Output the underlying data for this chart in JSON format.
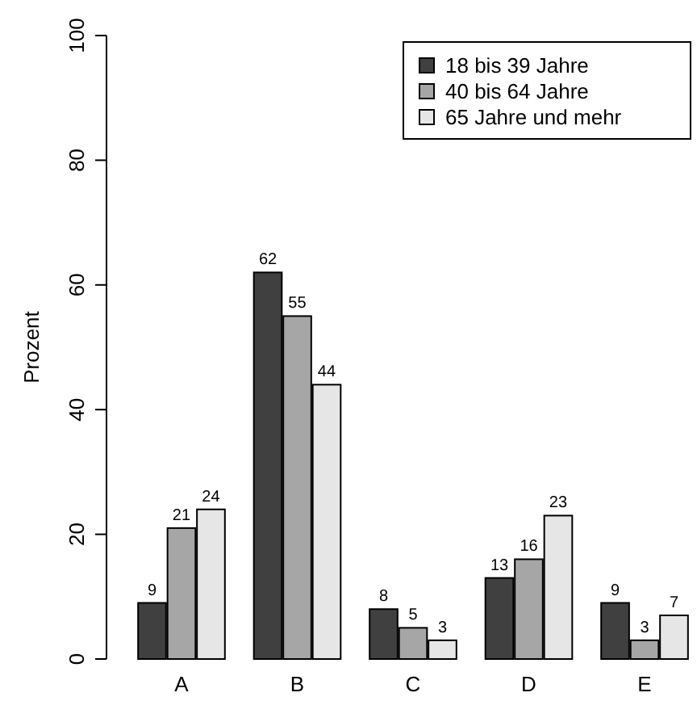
{
  "chart_data": {
    "type": "bar",
    "ylabel": "Prozent",
    "categories": [
      "A",
      "B",
      "C",
      "D",
      "E"
    ],
    "series": [
      {
        "name": "18 bis 39 Jahre",
        "color": "#404040",
        "values": [
          9,
          62,
          8,
          13,
          9
        ]
      },
      {
        "name": "40 bis 64 Jahre",
        "color": "#a6a6a6",
        "values": [
          21,
          55,
          5,
          16,
          3
        ]
      },
      {
        "name": "65 Jahre und mehr",
        "color": "#e6e6e6",
        "values": [
          24,
          44,
          3,
          23,
          7
        ]
      }
    ],
    "ylim": [
      0,
      100
    ],
    "yticks": [
      0,
      20,
      40,
      60,
      80,
      100
    ],
    "data_labels": true,
    "legend": "top right",
    "grid": false
  }
}
